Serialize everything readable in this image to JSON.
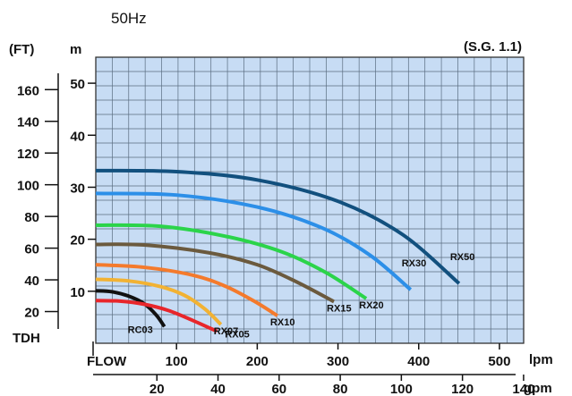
{
  "header": {
    "frequency": "50Hz",
    "specific_gravity": "(S.G.  1.1)"
  },
  "colors": {
    "plot_background": "#c7dcf4",
    "grid": "#5a6d80",
    "frequency_text": "#f07b3c"
  },
  "chart_data": {
    "type": "line",
    "title": "",
    "xlabel": "FLOW",
    "ylabel": "TDH",
    "x_unit_primary": "lpm",
    "x_unit_secondary": "gpm",
    "y_unit_primary": "m",
    "y_unit_secondary": "(FT)",
    "grid": true,
    "xlim_lpm": [
      0,
      530
    ],
    "ylim_m": [
      0,
      55
    ],
    "x_ticks_lpm": [
      100,
      200,
      300,
      400,
      500
    ],
    "x_ticks_gpm": [
      20,
      40,
      60,
      80,
      100,
      120,
      140
    ],
    "y_ticks_m": [
      10,
      20,
      30,
      40,
      50
    ],
    "y_ticks_ft": [
      20,
      40,
      60,
      80,
      100,
      120,
      140,
      160
    ],
    "series": [
      {
        "name": "RC03",
        "color": "#111111",
        "x": [
          0,
          20,
          40,
          60,
          75,
          85
        ],
        "y": [
          10.1,
          9.9,
          9.1,
          7.6,
          5.4,
          3.2
        ]
      },
      {
        "name": "RX05",
        "color": "#e8262b",
        "x": [
          0,
          30,
          60,
          90,
          120,
          150
        ],
        "y": [
          8.2,
          8.1,
          7.5,
          6.3,
          4.4,
          2.3
        ]
      },
      {
        "name": "RX07",
        "color": "#f2b233",
        "x": [
          0,
          40,
          80,
          110,
          135,
          155
        ],
        "y": [
          12.3,
          12.0,
          10.9,
          9.2,
          6.6,
          3.6
        ]
      },
      {
        "name": "RX10",
        "color": "#f47a2c",
        "x": [
          0,
          60,
          120,
          160,
          195,
          225
        ],
        "y": [
          15.1,
          14.6,
          13.1,
          11.0,
          8.2,
          5.3
        ]
      },
      {
        "name": "RX15",
        "color": "#6b5a3e",
        "x": [
          0,
          60,
          140,
          200,
          250,
          295
        ],
        "y": [
          19.0,
          18.9,
          17.4,
          15.1,
          11.7,
          8.0
        ]
      },
      {
        "name": "RX20",
        "color": "#2bd44a",
        "x": [
          0,
          80,
          160,
          230,
          285,
          335
        ],
        "y": [
          22.7,
          22.5,
          20.6,
          17.6,
          13.6,
          8.6
        ]
      },
      {
        "name": "RX30",
        "color": "#2c8fe8",
        "x": [
          0,
          100,
          200,
          280,
          340,
          390
        ],
        "y": [
          28.8,
          28.5,
          26.2,
          22.2,
          16.9,
          10.3
        ]
      },
      {
        "name": "RX50",
        "color": "#12507e",
        "x": [
          0,
          100,
          200,
          300,
          380,
          450
        ],
        "y": [
          33.2,
          33.0,
          31.4,
          27.3,
          20.9,
          11.5
        ]
      }
    ]
  }
}
